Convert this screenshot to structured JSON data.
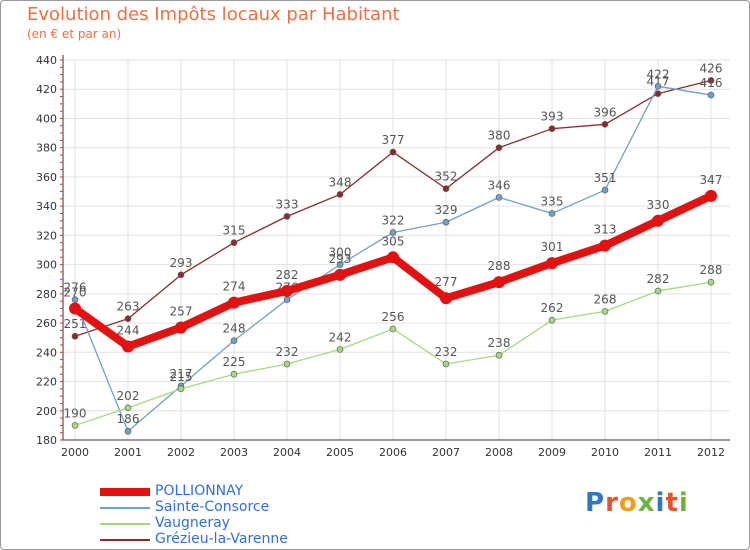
{
  "header": {
    "title": "Evolution des Impôts locaux par Habitant",
    "subtitle": "(en € et par an)"
  },
  "logo": {
    "text": "Proxiti",
    "colors": [
      "#2f77c8",
      "#e8512a",
      "#f39a1b",
      "#6cb33f",
      "#2f77c8",
      "#e8512a",
      "#6cb33f"
    ]
  },
  "chart_data": {
    "type": "line",
    "title": "Evolution des Impôts locaux par Habitant",
    "subtitle": "(en € et par an)",
    "xlabel": "",
    "ylabel": "",
    "x": [
      "2000",
      "2001",
      "2002",
      "2003",
      "2004",
      "2005",
      "2006",
      "2007",
      "2008",
      "2009",
      "2010",
      "2011",
      "2012"
    ],
    "ylim": [
      180,
      440
    ],
    "yticks": [
      180,
      200,
      220,
      240,
      260,
      280,
      300,
      320,
      340,
      360,
      380,
      400,
      420,
      440
    ],
    "grid": true,
    "legend_position": "bottom-left",
    "series": [
      {
        "name": "Grézieu-la-Varenne",
        "color": "#8b2c2c",
        "values": [
          251,
          263,
          293,
          315,
          333,
          348,
          377,
          352,
          380,
          393,
          396,
          417,
          426
        ],
        "labels": [
          "251",
          "263",
          "293",
          "315",
          "333",
          "348",
          "377",
          "352",
          "380",
          "393",
          "396",
          "417",
          "426"
        ]
      },
      {
        "name": "Sainte-Consorce",
        "color": "#6fa0cc",
        "values": [
          276,
          186,
          217,
          248,
          276,
          300,
          322,
          329,
          346,
          335,
          351,
          422,
          416
        ],
        "labels": [
          "276",
          "186",
          "217",
          "248",
          "276",
          "300",
          "322",
          "329",
          "346",
          "335",
          "351",
          "422",
          "416"
        ]
      },
      {
        "name": "Vaugneray",
        "color": "#a5d97f",
        "values": [
          190,
          202,
          215,
          225,
          232,
          242,
          256,
          232,
          238,
          262,
          268,
          282,
          288
        ],
        "labels": [
          "190",
          "202",
          "215",
          "225",
          "232",
          "242",
          "256",
          "232",
          "238",
          "262",
          "268",
          "282",
          "288"
        ]
      },
      {
        "name": "POLLIONNAY",
        "color": "#e41111",
        "values": [
          270,
          244,
          257,
          274,
          282,
          293,
          305,
          277,
          288,
          301,
          313,
          330,
          347
        ],
        "labels": [
          "270",
          "244",
          "257",
          "274",
          "282",
          "293",
          "305",
          "277",
          "288",
          "301",
          "313",
          "330",
          "347"
        ]
      }
    ],
    "legend": [
      "POLLIONNAY",
      "Sainte-Consorce",
      "Vaugneray",
      "Grézieu-la-Varenne"
    ]
  }
}
